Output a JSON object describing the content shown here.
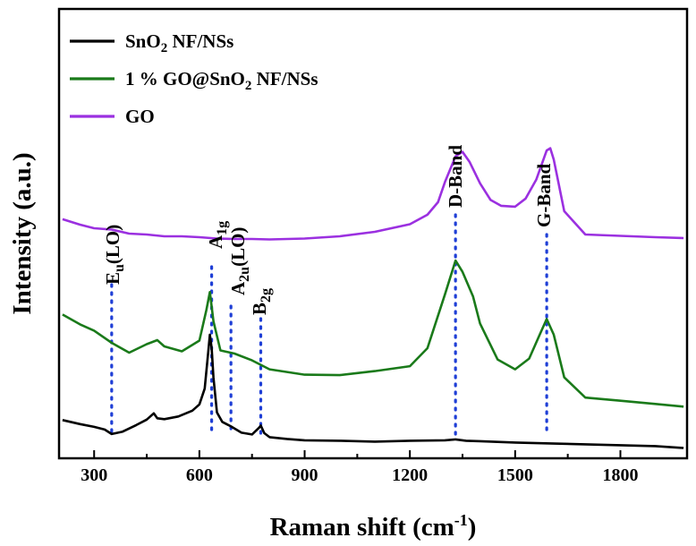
{
  "chart_data": {
    "type": "line",
    "xlabel": "Raman shift (cm-1)",
    "ylabel": "Intensity (a.u.)",
    "xlim": [
      200,
      1990
    ],
    "ylim": [
      0,
      100
    ],
    "x_ticks": [
      300,
      600,
      900,
      1200,
      1500,
      1800
    ],
    "y_ticks_shown": false,
    "grid": false,
    "legend": "top-left",
    "legend_entries": [
      {
        "pre": "SnO",
        "sub": "2",
        "post": " NF/NSs",
        "color": "#000000"
      },
      {
        "pre": "1 % GO@SnO",
        "sub": "2",
        "post": " NF/NSs",
        "color": "#1a7a1a"
      },
      {
        "pre": "GO",
        "sub": "",
        "post": "",
        "color": "#9b30e0"
      }
    ],
    "series": [
      {
        "color": "#000000",
        "x": [
          210,
          260,
          300,
          330,
          350,
          380,
          420,
          450,
          470,
          480,
          500,
          540,
          580,
          600,
          615,
          625,
          630,
          635,
          640,
          650,
          665,
          690,
          720,
          750,
          770,
          775,
          785,
          800,
          850,
          900,
          1000,
          1100,
          1200,
          1300,
          1330,
          1360,
          1400,
          1500,
          1600,
          1700,
          1800,
          1900,
          1980
        ],
        "y": [
          8.5,
          7.6,
          7.0,
          6.4,
          5.4,
          5.9,
          7.4,
          8.6,
          10.0,
          8.9,
          8.7,
          9.3,
          10.6,
          12.0,
          15.5,
          23.5,
          27.5,
          24.5,
          18.0,
          10.2,
          8.1,
          7.1,
          5.7,
          5.3,
          6.8,
          7.3,
          5.6,
          4.7,
          4.3,
          4.0,
          3.9,
          3.7,
          3.9,
          4.0,
          4.2,
          3.9,
          3.8,
          3.5,
          3.3,
          3.1,
          2.9,
          2.7,
          2.3
        ]
      },
      {
        "color": "#1a7a1a",
        "x": [
          210,
          260,
          300,
          350,
          400,
          450,
          480,
          500,
          550,
          600,
          620,
          630,
          640,
          660,
          700,
          750,
          800,
          900,
          1000,
          1100,
          1200,
          1250,
          1300,
          1330,
          1350,
          1380,
          1400,
          1450,
          1500,
          1540,
          1570,
          1590,
          1610,
          1640,
          1700,
          1800,
          1900,
          1980
        ],
        "y": [
          32.0,
          29.8,
          28.4,
          25.7,
          23.5,
          25.4,
          26.3,
          24.9,
          23.8,
          26.2,
          33.0,
          37.0,
          30.5,
          24.0,
          23.3,
          21.8,
          19.8,
          18.6,
          18.5,
          19.4,
          20.5,
          24.5,
          36.5,
          44.0,
          41.5,
          36.0,
          30.0,
          22.0,
          19.8,
          22.2,
          27.5,
          31.0,
          27.5,
          18.0,
          13.5,
          12.8,
          12.1,
          11.5
        ]
      },
      {
        "color": "#9b30e0",
        "x": [
          210,
          260,
          300,
          350,
          400,
          450,
          500,
          550,
          600,
          650,
          700,
          750,
          800,
          900,
          1000,
          1100,
          1200,
          1250,
          1280,
          1300,
          1330,
          1350,
          1370,
          1400,
          1430,
          1460,
          1500,
          1530,
          1560,
          1590,
          1600,
          1610,
          1640,
          1700,
          1800,
          1900,
          1980
        ],
        "y": [
          53.2,
          52.0,
          51.2,
          50.9,
          50.0,
          49.8,
          49.4,
          49.4,
          49.2,
          48.9,
          48.8,
          48.8,
          48.7,
          48.9,
          49.4,
          50.4,
          52.1,
          54.2,
          57.0,
          61.5,
          67.2,
          68.2,
          66.0,
          61.2,
          57.5,
          56.2,
          56.0,
          57.8,
          62.0,
          68.5,
          69.0,
          66.5,
          55.0,
          49.8,
          49.5,
          49.2,
          49.0
        ]
      }
    ],
    "annotations": [
      {
        "x": 350,
        "label_base": "E",
        "label_sub": "u",
        "label_rest": "(LO)"
      },
      {
        "x": 635,
        "label_base": "A",
        "label_sub": "1g",
        "label_rest": ""
      },
      {
        "x": 690,
        "label_base": "A",
        "label_sub": "2u",
        "label_rest": "(LO)"
      },
      {
        "x": 775,
        "label_base": "B",
        "label_sub": "2g",
        "label_rest": ""
      },
      {
        "x": 1330,
        "label_base": "D-Band",
        "label_sub": "",
        "label_rest": ""
      },
      {
        "x": 1590,
        "label_base": "G-Band",
        "label_sub": "",
        "label_rest": ""
      }
    ]
  }
}
